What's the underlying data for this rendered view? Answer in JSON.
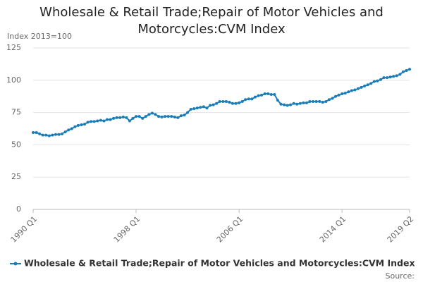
{
  "chart_data": {
    "type": "line",
    "title": "Wholesale & Retail Trade;Repair of Motor Vehicles and Motorcycles:CVM Index",
    "y_label": "Index 2013=100",
    "source": "Source:",
    "categories": [
      "1990 Q1",
      null,
      null,
      null,
      null,
      null,
      null,
      null,
      null,
      null,
      null,
      null,
      null,
      null,
      null,
      null,
      null,
      null,
      null,
      null,
      null,
      null,
      null,
      null,
      null,
      null,
      null,
      null,
      null,
      null,
      null,
      null,
      "1998 Q1",
      null,
      null,
      null,
      null,
      null,
      null,
      null,
      null,
      null,
      null,
      null,
      null,
      null,
      null,
      null,
      null,
      null,
      null,
      null,
      null,
      null,
      null,
      null,
      null,
      null,
      null,
      null,
      null,
      null,
      null,
      null,
      "2006 Q1",
      null,
      null,
      null,
      null,
      null,
      null,
      null,
      null,
      null,
      null,
      null,
      null,
      null,
      null,
      null,
      null,
      null,
      null,
      null,
      null,
      null,
      null,
      null,
      null,
      null,
      null,
      null,
      null,
      null,
      null,
      null,
      "2014 Q1",
      null,
      null,
      null,
      null,
      null,
      null,
      null,
      null,
      null,
      null,
      null,
      null,
      null,
      null,
      null,
      null,
      null,
      null,
      null,
      null,
      "2019 Q2"
    ],
    "series": [
      {
        "name": "Wholesale & Retail Trade;Repair of Motor Vehicles and Motorcycles:CVM Index",
        "color": "#1a7db8",
        "values": [
          59.5,
          59.5,
          58.5,
          57.5,
          57.5,
          57,
          57.5,
          58,
          58,
          58.5,
          60,
          61.5,
          62.5,
          64,
          65,
          65.5,
          66,
          67.5,
          68,
          68,
          68.5,
          69,
          68.5,
          69.5,
          69.5,
          70.5,
          71,
          71,
          71.5,
          71,
          68.5,
          70.5,
          72,
          72,
          70.5,
          72,
          73.5,
          74.5,
          73.5,
          72,
          71.5,
          72,
          72,
          72,
          71.5,
          71,
          72.5,
          73,
          75,
          77.5,
          78,
          78.5,
          79,
          79.5,
          78.5,
          80.5,
          81,
          82,
          83.5,
          83.5,
          83.5,
          83,
          82,
          82,
          82.5,
          83.5,
          85,
          85.5,
          85.5,
          87,
          88,
          88.5,
          89.5,
          89.5,
          89,
          89,
          84.5,
          81.5,
          81,
          80.5,
          81,
          82,
          81.5,
          82,
          82.5,
          82.5,
          83.5,
          83.5,
          83.5,
          83.5,
          83,
          83.5,
          85,
          86,
          87.5,
          88.5,
          89.5,
          90,
          91,
          92,
          92.5,
          93.5,
          94.5,
          95.5,
          96.5,
          97.5,
          99,
          99.5,
          100.5,
          102,
          102,
          102.5,
          103,
          103.5,
          104.5,
          106.5,
          107.5,
          108.5
        ]
      }
    ],
    "ylim": [
      0,
      125
    ],
    "yticks": [
      0,
      25,
      50,
      75,
      100,
      125
    ],
    "grid": true
  }
}
